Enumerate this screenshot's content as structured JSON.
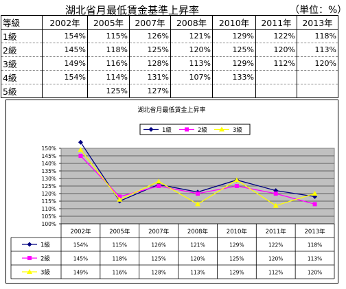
{
  "sheet": {
    "title": "湖北省月最低賃金基準上昇率",
    "unit": "（単位：%）",
    "header": [
      "等級",
      "2002年",
      "2005年",
      "2007年",
      "2008年",
      "2010年",
      "2011年",
      "2013年"
    ],
    "rows": [
      [
        "1級",
        "154%",
        "115%",
        "126%",
        "121%",
        "129%",
        "122%",
        "118%"
      ],
      [
        "2級",
        "145%",
        "118%",
        "125%",
        "120%",
        "125%",
        "120%",
        "113%"
      ],
      [
        "3級",
        "149%",
        "116%",
        "128%",
        "113%",
        "129%",
        "112%",
        "120%"
      ],
      [
        "4級",
        "154%",
        "114%",
        "131%",
        "107%",
        "133%",
        "",
        ""
      ],
      [
        "5級",
        "",
        "125%",
        "127%",
        "",
        "",
        "",
        ""
      ]
    ]
  },
  "chart_data": {
    "type": "line",
    "title": "湖北省月最低賃金上昇率",
    "categories": [
      "2002年",
      "2005年",
      "2007年",
      "2008年",
      "2010年",
      "2011年",
      "2013年"
    ],
    "series": [
      {
        "name": "1級",
        "values": [
          154,
          115,
          126,
          121,
          129,
          122,
          118
        ],
        "labels": [
          "154%",
          "115%",
          "126%",
          "121%",
          "129%",
          "122%",
          "118%"
        ],
        "color": "#000080",
        "marker": "diamond"
      },
      {
        "name": "2級",
        "values": [
          145,
          118,
          125,
          120,
          125,
          120,
          113
        ],
        "labels": [
          "145%",
          "118%",
          "125%",
          "120%",
          "125%",
          "120%",
          "113%"
        ],
        "color": "#ff00ff",
        "marker": "square"
      },
      {
        "name": "3級",
        "values": [
          149,
          116,
          128,
          113,
          129,
          112,
          120
        ],
        "labels": [
          "149%",
          "116%",
          "128%",
          "113%",
          "129%",
          "112%",
          "120%"
        ],
        "color": "#ffff00",
        "marker": "triangle"
      }
    ],
    "ylim": [
      100,
      150
    ],
    "yticks": [
      "100%",
      "105%",
      "110%",
      "115%",
      "120%",
      "125%",
      "130%",
      "135%",
      "140%",
      "145%",
      "150%"
    ],
    "plot_background": "#c0c0c0",
    "grid": true,
    "legend": "top-center",
    "data_table": true
  }
}
